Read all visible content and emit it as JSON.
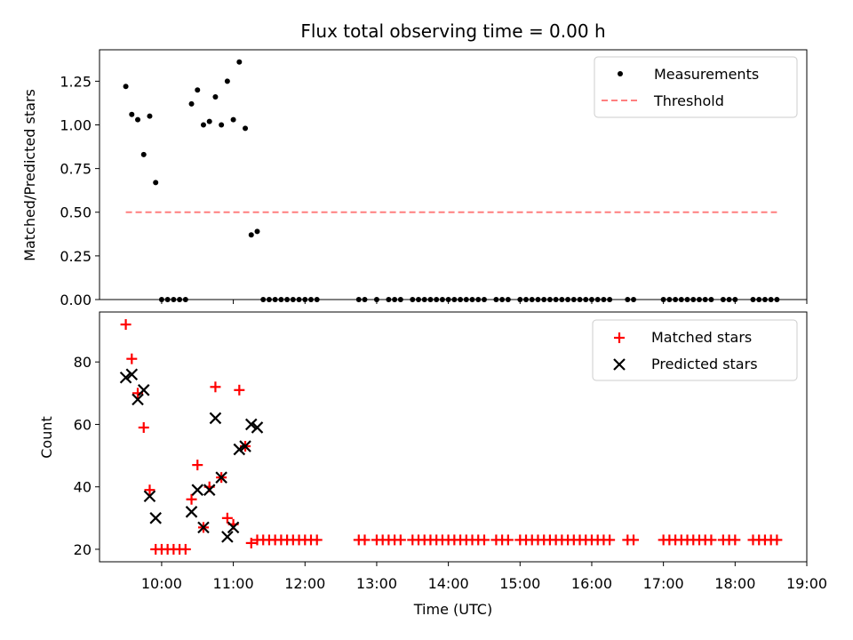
{
  "chart_data": [
    {
      "type": "scatter",
      "title": "Flux total observing time = 0.00 h",
      "xlabel": "",
      "ylabel": "Matched/Predicted stars",
      "ylim": [
        0,
        1.43
      ],
      "y_ticks": [
        "0.00",
        "0.25",
        "0.50",
        "0.75",
        "1.00",
        "1.25"
      ],
      "y_tick_values": [
        0,
        0.25,
        0.5,
        0.75,
        1.0,
        1.25
      ],
      "xlim": [
        "09:08",
        "19:00"
      ],
      "grid": false,
      "legend_position": "top-right",
      "series": [
        {
          "name": "Measurements",
          "marker": "dot",
          "color": "#000000",
          "points": [
            [
              "09:30",
              1.22
            ],
            [
              "09:35",
              1.06
            ],
            [
              "09:40",
              1.03
            ],
            [
              "09:45",
              0.83
            ],
            [
              "09:50",
              1.05
            ],
            [
              "09:55",
              0.67
            ],
            [
              "10:00",
              0.0
            ],
            [
              "10:05",
              0.0
            ],
            [
              "10:10",
              0.0
            ],
            [
              "10:15",
              0.0
            ],
            [
              "10:20",
              0.0
            ],
            [
              "10:25",
              1.12
            ],
            [
              "10:30",
              1.2
            ],
            [
              "10:35",
              1.0
            ],
            [
              "10:40",
              1.02
            ],
            [
              "10:45",
              1.16
            ],
            [
              "10:50",
              1.0
            ],
            [
              "10:55",
              1.25
            ],
            [
              "11:00",
              1.03
            ],
            [
              "11:05",
              1.36
            ],
            [
              "11:10",
              0.98
            ],
            [
              "11:15",
              0.37
            ],
            [
              "11:20",
              0.39
            ],
            [
              "11:25",
              0.0
            ],
            [
              "11:30",
              0.0
            ],
            [
              "11:35",
              0.0
            ],
            [
              "11:40",
              0.0
            ],
            [
              "11:45",
              0.0
            ],
            [
              "11:50",
              0.0
            ],
            [
              "11:55",
              0.0
            ],
            [
              "12:00",
              0.0
            ],
            [
              "12:05",
              0.0
            ],
            [
              "12:10",
              0.0
            ],
            [
              "12:45",
              0.0
            ],
            [
              "12:50",
              0.0
            ],
            [
              "13:00",
              0.0
            ],
            [
              "13:10",
              0.0
            ],
            [
              "13:15",
              0.0
            ],
            [
              "13:20",
              0.0
            ],
            [
              "13:30",
              0.0
            ],
            [
              "13:35",
              0.0
            ],
            [
              "13:40",
              0.0
            ],
            [
              "13:45",
              0.0
            ],
            [
              "13:50",
              0.0
            ],
            [
              "13:55",
              0.0
            ],
            [
              "14:00",
              0.0
            ],
            [
              "14:05",
              0.0
            ],
            [
              "14:10",
              0.0
            ],
            [
              "14:15",
              0.0
            ],
            [
              "14:20",
              0.0
            ],
            [
              "14:25",
              0.0
            ],
            [
              "14:30",
              0.0
            ],
            [
              "14:40",
              0.0
            ],
            [
              "14:45",
              0.0
            ],
            [
              "14:50",
              0.0
            ],
            [
              "15:00",
              0.0
            ],
            [
              "15:05",
              0.0
            ],
            [
              "15:10",
              0.0
            ],
            [
              "15:15",
              0.0
            ],
            [
              "15:20",
              0.0
            ],
            [
              "15:25",
              0.0
            ],
            [
              "15:30",
              0.0
            ],
            [
              "15:35",
              0.0
            ],
            [
              "15:40",
              0.0
            ],
            [
              "15:45",
              0.0
            ],
            [
              "15:50",
              0.0
            ],
            [
              "15:55",
              0.0
            ],
            [
              "16:00",
              0.0
            ],
            [
              "16:05",
              0.0
            ],
            [
              "16:10",
              0.0
            ],
            [
              "16:15",
              0.0
            ],
            [
              "16:30",
              0.0
            ],
            [
              "16:35",
              0.0
            ],
            [
              "17:00",
              0.0
            ],
            [
              "17:05",
              0.0
            ],
            [
              "17:10",
              0.0
            ],
            [
              "17:15",
              0.0
            ],
            [
              "17:20",
              0.0
            ],
            [
              "17:25",
              0.0
            ],
            [
              "17:30",
              0.0
            ],
            [
              "17:35",
              0.0
            ],
            [
              "17:40",
              0.0
            ],
            [
              "17:50",
              0.0
            ],
            [
              "17:55",
              0.0
            ],
            [
              "18:00",
              0.0
            ],
            [
              "18:15",
              0.0
            ],
            [
              "18:20",
              0.0
            ],
            [
              "18:25",
              0.0
            ],
            [
              "18:30",
              0.0
            ],
            [
              "18:35",
              0.0
            ]
          ]
        },
        {
          "name": "Threshold",
          "type": "line",
          "style": "dashed",
          "color": "#ff7f7f",
          "points": [
            [
              "09:30",
              0.5
            ],
            [
              "18:35",
              0.5
            ]
          ]
        }
      ]
    },
    {
      "type": "scatter",
      "title": "",
      "xlabel": "Time (UTC)",
      "ylabel": "Count",
      "ylim": [
        16,
        96
      ],
      "y_ticks": [
        "20",
        "40",
        "60",
        "80"
      ],
      "y_tick_values": [
        20,
        40,
        60,
        80
      ],
      "xlim": [
        "09:08",
        "19:00"
      ],
      "x_ticks": [
        "10:00",
        "11:00",
        "12:00",
        "13:00",
        "14:00",
        "15:00",
        "16:00",
        "17:00",
        "18:00",
        "19:00"
      ],
      "grid": false,
      "legend_position": "top-right",
      "series": [
        {
          "name": "Matched stars",
          "marker": "plus",
          "color": "#ff0000",
          "points": [
            [
              "09:30",
              92
            ],
            [
              "09:35",
              81
            ],
            [
              "09:40",
              70
            ],
            [
              "09:45",
              59
            ],
            [
              "09:50",
              39
            ],
            [
              "09:55",
              20
            ],
            [
              "10:00",
              20
            ],
            [
              "10:05",
              20
            ],
            [
              "10:10",
              20
            ],
            [
              "10:15",
              20
            ],
            [
              "10:20",
              20
            ],
            [
              "10:25",
              36
            ],
            [
              "10:30",
              47
            ],
            [
              "10:35",
              27
            ],
            [
              "10:40",
              40
            ],
            [
              "10:45",
              72
            ],
            [
              "10:50",
              43
            ],
            [
              "10:55",
              30
            ],
            [
              "11:00",
              28
            ],
            [
              "11:05",
              71
            ],
            [
              "11:10",
              53
            ],
            [
              "11:15",
              22
            ],
            [
              "11:20",
              23
            ],
            [
              "11:25",
              23
            ],
            [
              "11:30",
              23
            ],
            [
              "11:35",
              23
            ],
            [
              "11:40",
              23
            ],
            [
              "11:45",
              23
            ],
            [
              "11:50",
              23
            ],
            [
              "11:55",
              23
            ],
            [
              "12:00",
              23
            ],
            [
              "12:05",
              23
            ],
            [
              "12:10",
              23
            ],
            [
              "12:45",
              23
            ],
            [
              "12:50",
              23
            ],
            [
              "13:00",
              23
            ],
            [
              "13:05",
              23
            ],
            [
              "13:10",
              23
            ],
            [
              "13:15",
              23
            ],
            [
              "13:20",
              23
            ],
            [
              "13:30",
              23
            ],
            [
              "13:35",
              23
            ],
            [
              "13:40",
              23
            ],
            [
              "13:45",
              23
            ],
            [
              "13:50",
              23
            ],
            [
              "13:55",
              23
            ],
            [
              "14:00",
              23
            ],
            [
              "14:05",
              23
            ],
            [
              "14:10",
              23
            ],
            [
              "14:15",
              23
            ],
            [
              "14:20",
              23
            ],
            [
              "14:25",
              23
            ],
            [
              "14:30",
              23
            ],
            [
              "14:40",
              23
            ],
            [
              "14:45",
              23
            ],
            [
              "14:50",
              23
            ],
            [
              "15:00",
              23
            ],
            [
              "15:05",
              23
            ],
            [
              "15:10",
              23
            ],
            [
              "15:15",
              23
            ],
            [
              "15:20",
              23
            ],
            [
              "15:25",
              23
            ],
            [
              "15:30",
              23
            ],
            [
              "15:35",
              23
            ],
            [
              "15:40",
              23
            ],
            [
              "15:45",
              23
            ],
            [
              "15:50",
              23
            ],
            [
              "15:55",
              23
            ],
            [
              "16:00",
              23
            ],
            [
              "16:05",
              23
            ],
            [
              "16:10",
              23
            ],
            [
              "16:15",
              23
            ],
            [
              "16:30",
              23
            ],
            [
              "16:35",
              23
            ],
            [
              "17:00",
              23
            ],
            [
              "17:05",
              23
            ],
            [
              "17:10",
              23
            ],
            [
              "17:15",
              23
            ],
            [
              "17:20",
              23
            ],
            [
              "17:25",
              23
            ],
            [
              "17:30",
              23
            ],
            [
              "17:35",
              23
            ],
            [
              "17:40",
              23
            ],
            [
              "17:50",
              23
            ],
            [
              "17:55",
              23
            ],
            [
              "18:00",
              23
            ],
            [
              "18:15",
              23
            ],
            [
              "18:20",
              23
            ],
            [
              "18:25",
              23
            ],
            [
              "18:30",
              23
            ],
            [
              "18:35",
              23
            ]
          ]
        },
        {
          "name": "Predicted stars",
          "marker": "x",
          "color": "#000000",
          "points": [
            [
              "09:30",
              75
            ],
            [
              "09:35",
              76
            ],
            [
              "09:40",
              68
            ],
            [
              "09:45",
              71
            ],
            [
              "09:50",
              37
            ],
            [
              "09:55",
              30
            ],
            [
              "10:25",
              32
            ],
            [
              "10:30",
              39
            ],
            [
              "10:35",
              27
            ],
            [
              "10:40",
              39
            ],
            [
              "10:45",
              62
            ],
            [
              "10:50",
              43
            ],
            [
              "10:55",
              24
            ],
            [
              "11:00",
              27
            ],
            [
              "11:05",
              52
            ],
            [
              "11:10",
              53
            ],
            [
              "11:15",
              60
            ],
            [
              "11:20",
              59
            ]
          ]
        }
      ]
    }
  ]
}
